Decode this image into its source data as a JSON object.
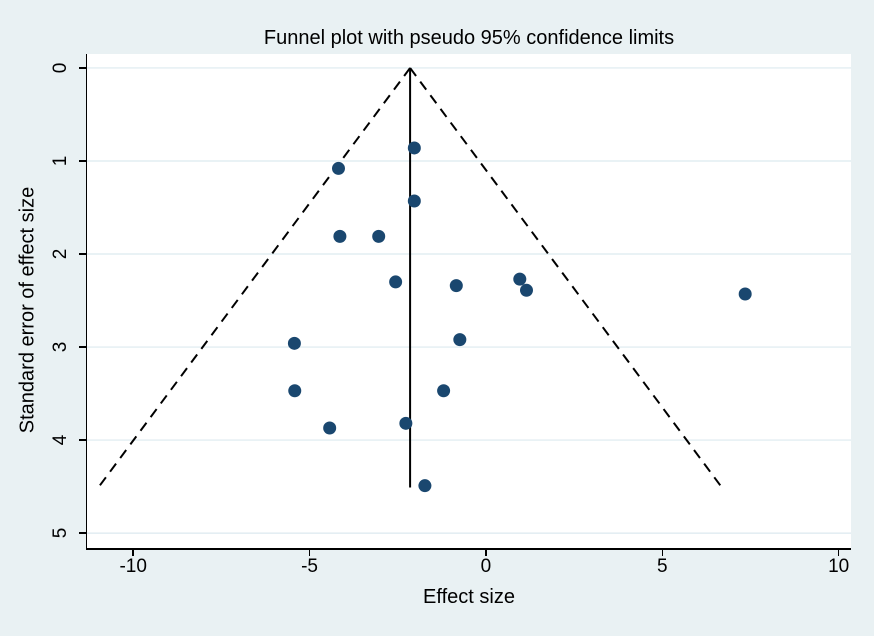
{
  "title": "Funnel plot with pseudo 95% confidence limits",
  "chart_data": {
    "type": "scatter",
    "title": "Funnel plot with pseudo 95% confidence limits",
    "xlabel": "Effect size",
    "ylabel": "Standard error of effect size",
    "xlim": [
      -11.31,
      10.35
    ],
    "se_lim": [
      -0.15,
      5.16
    ],
    "xticks": [
      -10,
      -5,
      0,
      5,
      10
    ],
    "yticks": [
      0,
      1,
      2,
      3,
      4,
      5
    ],
    "grid": "horizontal",
    "legend": "none",
    "points": [
      [
        -2.03,
        0.86
      ],
      [
        -4.18,
        1.08
      ],
      [
        -2.03,
        1.43
      ],
      [
        -4.14,
        1.81
      ],
      [
        -3.04,
        1.81
      ],
      [
        -2.56,
        2.3
      ],
      [
        -0.84,
        2.34
      ],
      [
        0.96,
        2.27
      ],
      [
        1.15,
        2.39
      ],
      [
        7.35,
        2.43
      ],
      [
        -0.74,
        2.92
      ],
      [
        -5.43,
        2.96
      ],
      [
        -5.42,
        3.47
      ],
      [
        -1.2,
        3.47
      ],
      [
        -2.27,
        3.82
      ],
      [
        -4.43,
        3.87
      ],
      [
        -1.73,
        4.49
      ]
    ],
    "pooled_effect": -2.15,
    "pseudo_ci_z": 1.96,
    "se_max": 4.51,
    "colors": {
      "figure_background": "#e9f1f3",
      "plot_background": "#ffffff",
      "gridline": "#dce9ef",
      "marker": "#1a476f",
      "line": "#000000"
    }
  }
}
